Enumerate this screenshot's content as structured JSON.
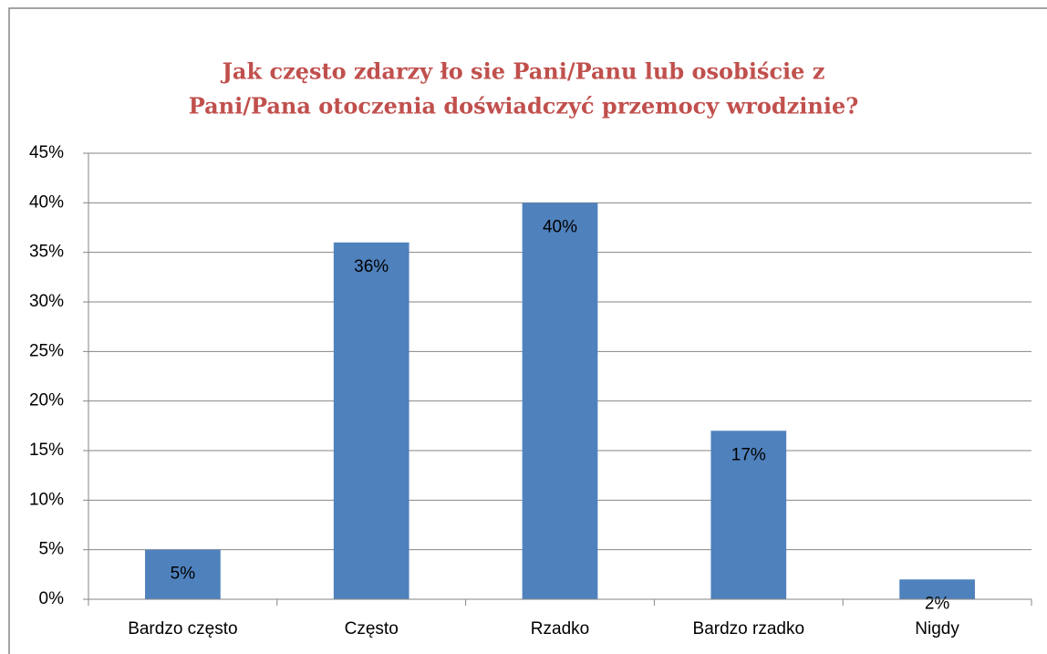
{
  "chart_data": {
    "type": "bar",
    "title": [
      "Jak często zdarzy ło sie Pani/Panu lub osobiście z",
      "Pani/Pana otoczenia doświadczyć przemocy wrodzinie?"
    ],
    "categories": [
      "Bardzo często",
      "Często",
      "Rzadko",
      "Bardzo rzadko",
      "Nigdy"
    ],
    "values": [
      5,
      36,
      40,
      17,
      2
    ],
    "value_labels": [
      "5%",
      "36%",
      "40%",
      "17%",
      "2%"
    ],
    "color": "#4f81bd",
    "ylim": [
      0,
      45
    ],
    "yticks": [
      {
        "value": 0,
        "label": "0%"
      },
      {
        "value": 5,
        "label": "5%"
      },
      {
        "value": 10,
        "label": "10%"
      },
      {
        "value": 15,
        "label": "15%"
      },
      {
        "value": 20,
        "label": "20%"
      },
      {
        "value": 25,
        "label": "25%"
      },
      {
        "value": 30,
        "label": "30%"
      },
      {
        "value": 35,
        "label": "35%"
      },
      {
        "value": 40,
        "label": "40%"
      },
      {
        "value": 45,
        "label": "45%"
      }
    ],
    "grid": true
  }
}
